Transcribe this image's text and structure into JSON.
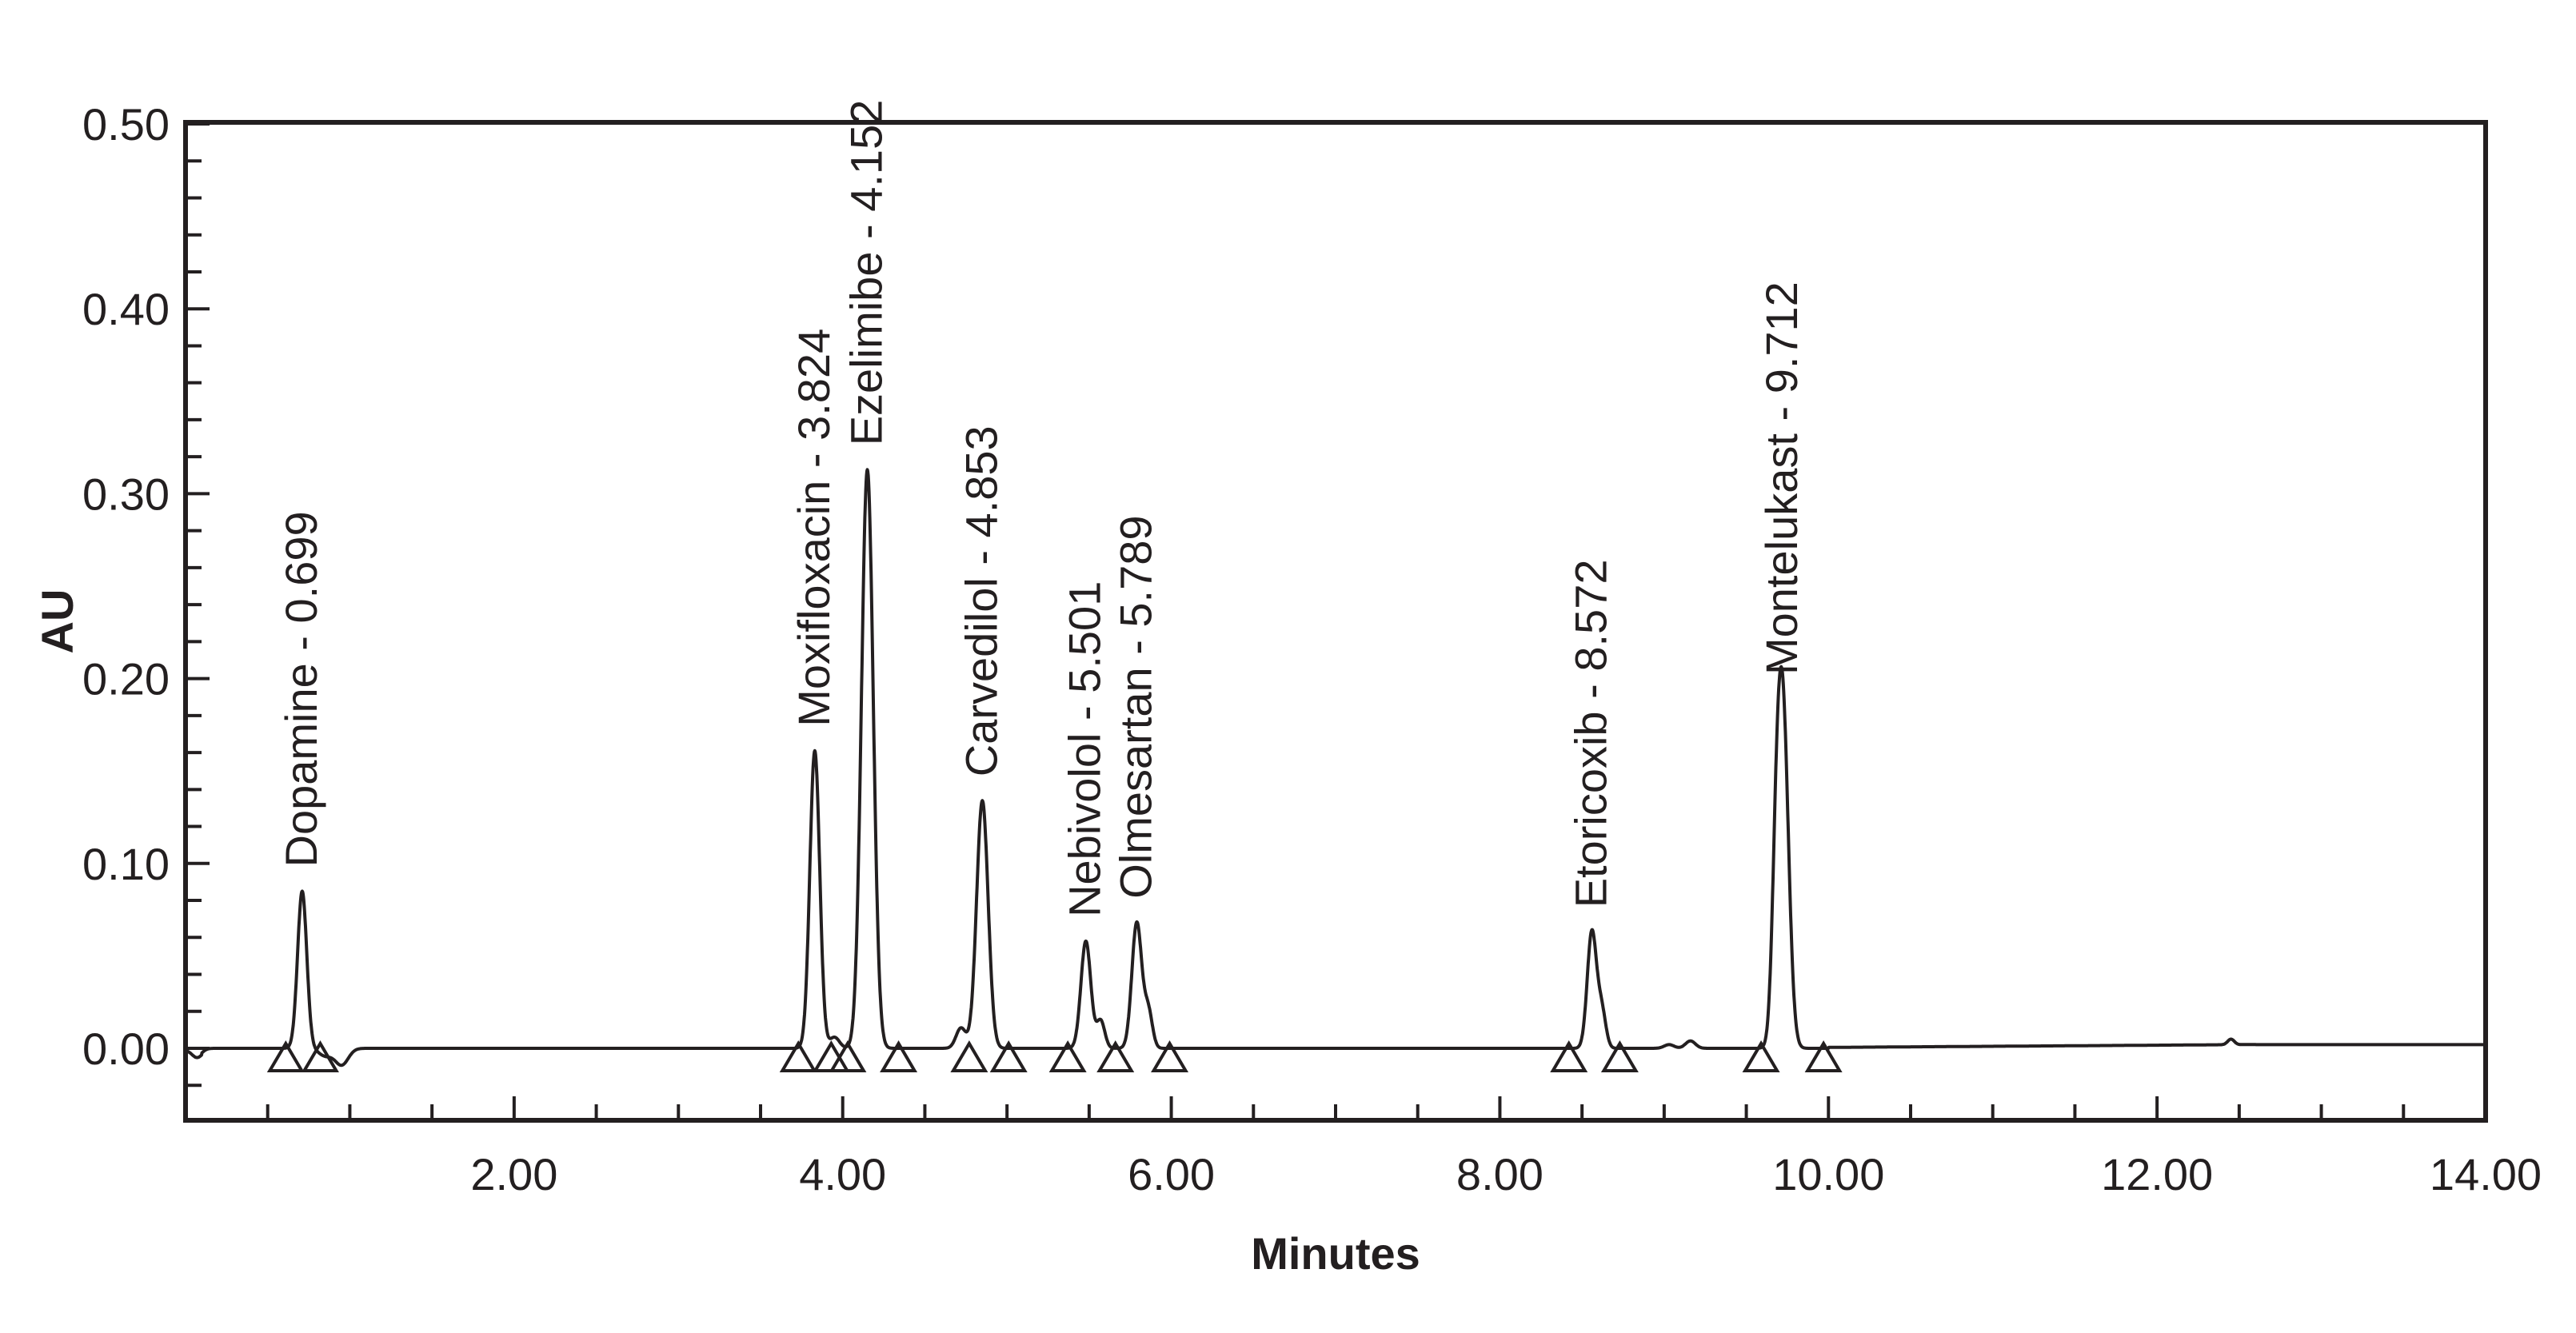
{
  "chart_data": {
    "type": "line",
    "xlabel": "Minutes",
    "ylabel": "AU",
    "xlim": [
      0,
      14
    ],
    "ylim": [
      -0.04,
      0.5
    ],
    "x_ticks": [
      {
        "value": 2,
        "label": "2.00"
      },
      {
        "value": 4,
        "label": "4.00"
      },
      {
        "value": 6,
        "label": "6.00"
      },
      {
        "value": 8,
        "label": "8.00"
      },
      {
        "value": 10,
        "label": "10.00"
      },
      {
        "value": 12,
        "label": "12.00"
      },
      {
        "value": 14,
        "label": "14.00"
      }
    ],
    "y_ticks": [
      {
        "value": 0.0,
        "label": "0.00"
      },
      {
        "value": 0.1,
        "label": "0.10"
      },
      {
        "value": 0.2,
        "label": "0.20"
      },
      {
        "value": 0.3,
        "label": "0.30"
      },
      {
        "value": 0.4,
        "label": "0.40"
      },
      {
        "value": 0.5,
        "label": "0.50"
      }
    ],
    "x_minor_step": 0.5,
    "y_minor_step": 0.02,
    "line_color": "#231f20",
    "peaks": [
      {
        "name": "Dopamine",
        "rt": 0.699,
        "apex_x": 0.71,
        "height": 0.085,
        "width": 0.028,
        "label": "Dopamine - 0.699"
      },
      {
        "name": "Moxifloxacin",
        "rt": 3.824,
        "apex_x": 3.83,
        "height": 0.161,
        "width": 0.03,
        "label": "Moxifloxacin - 3.824"
      },
      {
        "name": "Ezelimibe",
        "rt": 4.152,
        "apex_x": 4.15,
        "height": 0.313,
        "width": 0.036,
        "label": "Ezelimibe - 4.152"
      },
      {
        "name": "Carvedilol",
        "rt": 4.853,
        "apex_x": 4.85,
        "height": 0.134,
        "width": 0.035,
        "label": "Carvedilol - 4.853"
      },
      {
        "name": "Nebivolol",
        "rt": 5.501,
        "apex_x": 5.48,
        "height": 0.058,
        "width": 0.03,
        "label": "Nebivolol - 5.501"
      },
      {
        "name": "Olmesartan",
        "rt": 5.789,
        "apex_x": 5.79,
        "height": 0.068,
        "width": 0.03,
        "label": "Olmesartan - 5.789"
      },
      {
        "name": "Etoricoxib",
        "rt": 8.572,
        "apex_x": 8.56,
        "height": 0.063,
        "width": 0.028,
        "label": "Etoricoxib - 8.572"
      },
      {
        "name": "Montelukast",
        "rt": 9.712,
        "apex_x": 9.72,
        "height": 0.189,
        "width": 0.036,
        "label": "Montelukast - 9.712"
      }
    ],
    "minor_features": [
      {
        "x": 0.07,
        "dy": -0.004,
        "width": 0.03
      },
      {
        "x": 0.85,
        "dy": -0.004,
        "width": 0.04
      },
      {
        "x": 0.95,
        "dy": -0.009,
        "width": 0.04
      },
      {
        "x": 3.95,
        "dy": 0.006,
        "width": 0.03
      },
      {
        "x": 4.72,
        "dy": 0.011,
        "width": 0.03
      },
      {
        "x": 5.57,
        "dy": 0.015,
        "width": 0.025
      },
      {
        "x": 5.86,
        "dy": 0.02,
        "width": 0.025
      },
      {
        "x": 8.62,
        "dy": 0.02,
        "width": 0.025
      },
      {
        "x": 9.03,
        "dy": 0.002,
        "width": 0.03
      },
      {
        "x": 9.16,
        "dy": 0.004,
        "width": 0.03
      },
      {
        "x": 9.68,
        "dy": 0.05,
        "width": 0.025
      },
      {
        "x": 12.45,
        "dy": 0.003,
        "width": 0.02
      }
    ],
    "integration_markers": [
      0.61,
      0.82,
      3.73,
      3.93,
      4.03,
      4.34,
      4.77,
      5.01,
      5.37,
      5.66,
      5.99,
      8.42,
      8.73,
      9.59,
      9.97
    ]
  }
}
